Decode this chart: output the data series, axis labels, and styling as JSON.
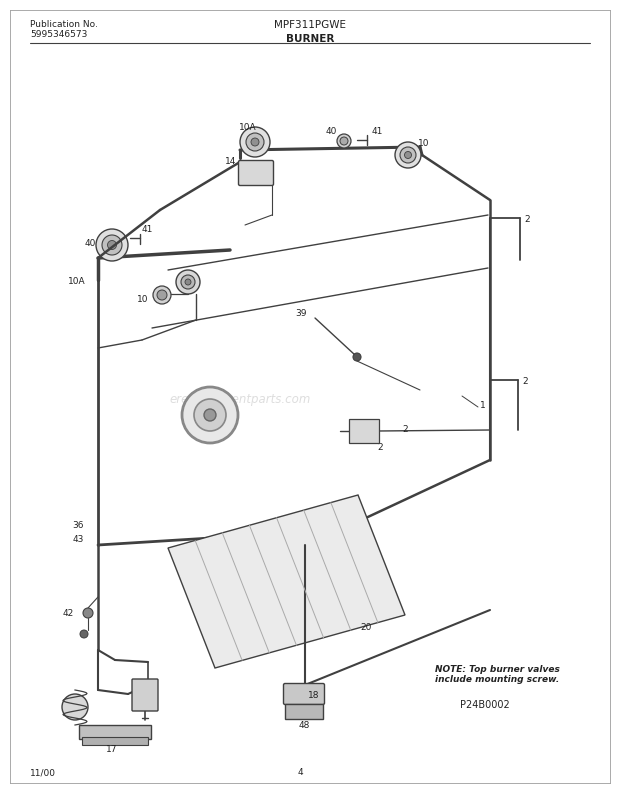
{
  "title_model": "MPF311PGWE",
  "title_section": "BURNER",
  "pub_no_label": "Publication No.",
  "pub_no": "5995346573",
  "date": "11/00",
  "page": "4",
  "diagram_id": "P24B0002",
  "note_line1": "NOTE: Top burner valves",
  "note_line2": "include mounting screw.",
  "bg_color": "#ffffff",
  "line_color": "#404040",
  "label_color": "#222222",
  "watermark_color": "#c8c8c8",
  "watermark_text": "ereplacementparts.com"
}
